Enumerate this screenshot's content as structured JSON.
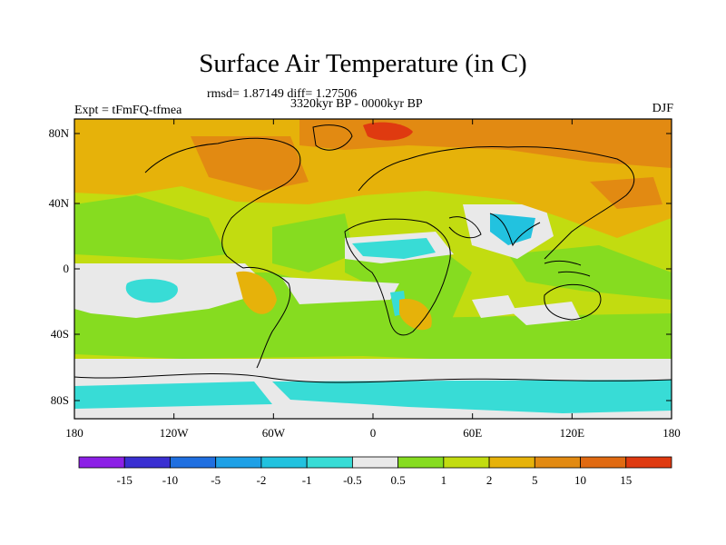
{
  "header": {
    "title": "Surface Air Temperature (in C)",
    "rmsd": "rmsd= 1.87149 diff= 1.27506",
    "period": "3320kyr BP - 0000kyr BP",
    "expt": "Expt = tFmFQ-tfmea",
    "season": "DJF"
  },
  "axes": {
    "y_ticks": [
      "80N",
      "40N",
      "0",
      "40S",
      "80S"
    ],
    "x_ticks": [
      "180",
      "120W",
      "60W",
      "0",
      "60E",
      "120E",
      "180"
    ]
  },
  "legend": {
    "labels": [
      "-15",
      "-10",
      "-5",
      "-2",
      "-1",
      "-0.5",
      "0.5",
      "1",
      "2",
      "5",
      "10",
      "15"
    ],
    "colors": [
      "#8c1fe6",
      "#3a2fd2",
      "#1f6fe0",
      "#1ea0e6",
      "#22c2df",
      "#38dcd6",
      "#e9e9e9",
      "#86dc20",
      "#c2dc10",
      "#e6b20a",
      "#e28a12",
      "#e06a12",
      "#df3a10"
    ]
  },
  "map_colors": {
    "ocean_base": "#c2dc10",
    "near_zero": "#e9e9e9",
    "warm_1": "#86dc20",
    "warm_5": "#e6b20a",
    "warm_10": "#e28a12",
    "warm_15": "#df3a10",
    "cool_1": "#38dcd6",
    "cool_2": "#22c2df"
  }
}
